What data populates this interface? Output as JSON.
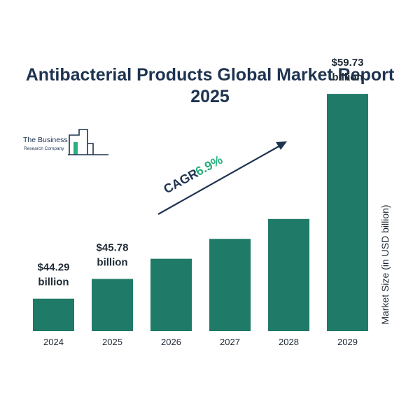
{
  "title": {
    "line1": "Antibacterial Products Global Market Report",
    "line2": "2025"
  },
  "logo": {
    "line1": "The Business",
    "line2": "Research Company",
    "icon": "bar-chart-logo-icon"
  },
  "cagr": {
    "label": "CAGR",
    "value": "6.9%",
    "icon": "arrow-up-right-icon"
  },
  "colors": {
    "bar": "#1f7a67",
    "title": "#1e3350",
    "cagr_value": "#2bb07f",
    "text": "#1e2a36"
  },
  "chart_data": {
    "type": "bar",
    "categories": [
      "2024",
      "2025",
      "2026",
      "2027",
      "2028",
      "2029"
    ],
    "values": [
      44.29,
      45.78,
      47.3,
      48.8,
      50.3,
      59.73
    ],
    "bar_labels": [
      [
        "$44.29",
        "billion"
      ],
      [
        "$45.78",
        "billion"
      ],
      null,
      null,
      null,
      [
        "$59.73",
        "billion"
      ]
    ],
    "xlabel": "",
    "ylabel": "Market Size (in USD billion)",
    "grid": false,
    "legend": "none"
  }
}
